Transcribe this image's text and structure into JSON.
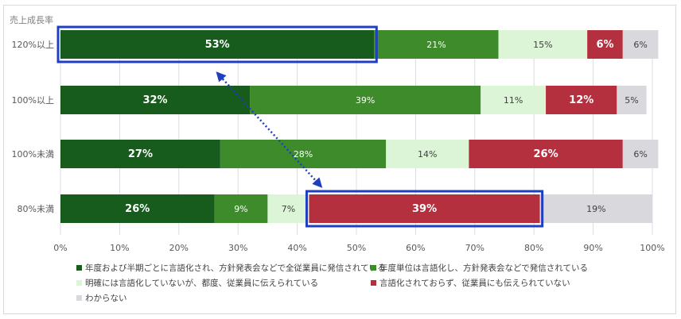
{
  "chart_data": {
    "type": "bar",
    "orientation": "horizontal",
    "stacked": true,
    "percent": true,
    "ylabel": "売上成長率",
    "categories": [
      "120%以上",
      "100%以上",
      "100%未満",
      "80%未満"
    ],
    "xlim": [
      0,
      100
    ],
    "xticks": [
      "0%",
      "10%",
      "20%",
      "30%",
      "40%",
      "50%",
      "60%",
      "70%",
      "80%",
      "90%",
      "100%"
    ],
    "grid": true,
    "legend_position": "bottom",
    "series": [
      {
        "name": "年度および半期ごとに言語化され、方針発表会などで全従業員に発信されている",
        "color": "#175c1d",
        "label_color": "#ffffff",
        "bold": true,
        "values": [
          53,
          32,
          27,
          26
        ]
      },
      {
        "name": "年度単位は言語化し、方針発表会などで発信されている",
        "color": "#3d8b2a",
        "label_color": "#ffffff",
        "bold": false,
        "values": [
          21,
          39,
          28,
          9
        ]
      },
      {
        "name": "明確には言語化していないが、都度、従業員に伝えられている",
        "color": "#dcf5d6",
        "label_color": "#404040",
        "bold": false,
        "values": [
          15,
          11,
          14,
          7
        ]
      },
      {
        "name": "言語化されておらず、従業員にも伝えられていない",
        "color": "#b5303e",
        "label_color": "#ffffff",
        "bold": true,
        "values": [
          6,
          12,
          26,
          39
        ]
      },
      {
        "name": "わからない",
        "color": "#d9d9dd",
        "label_color": "#404040",
        "bold": false,
        "values": [
          6,
          5,
          6,
          19
        ]
      }
    ],
    "labels": [
      [
        "53%",
        "21%",
        "15%",
        "6%",
        "6%"
      ],
      [
        "32%",
        "39%",
        "11%",
        "12%",
        "5%"
      ],
      [
        "27%",
        "28%",
        "14%",
        "26%",
        "6%"
      ],
      [
        "26%",
        "9%",
        "7%",
        "39%",
        "19%"
      ]
    ],
    "highlights": [
      {
        "category_index": 0,
        "series_index": 0,
        "color": "#1f3fbf"
      },
      {
        "category_index": 3,
        "series_index": 3,
        "color": "#1f3fbf"
      }
    ],
    "arrow": {
      "from": [
        0,
        0
      ],
      "to": [
        3,
        3
      ],
      "style": "dotted-double",
      "color": "#1f3fbf"
    }
  }
}
